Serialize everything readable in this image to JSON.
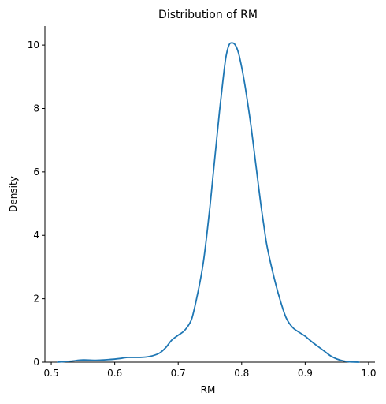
{
  "chart_data": {
    "type": "line",
    "title": "Distribution of RM",
    "xlabel": "RM",
    "ylabel": "Density",
    "xlim": [
      0.49,
      1.01
    ],
    "ylim": [
      0,
      10.6
    ],
    "xticks": [
      0.5,
      0.6,
      0.7,
      0.8,
      0.9,
      1.0
    ],
    "xtick_labels": [
      "0.5",
      "0.6",
      "0.7",
      "0.8",
      "0.9",
      "1.0"
    ],
    "yticks": [
      0,
      2,
      4,
      6,
      8,
      10
    ],
    "ytick_labels": [
      "0",
      "2",
      "4",
      "6",
      "8",
      "10"
    ],
    "grid": false,
    "series": [
      {
        "color": "#1f77b4",
        "x": [
          0.51,
          0.53,
          0.55,
          0.57,
          0.59,
          0.61,
          0.62,
          0.64,
          0.655,
          0.67,
          0.68,
          0.69,
          0.7,
          0.71,
          0.72,
          0.725,
          0.73,
          0.735,
          0.74,
          0.745,
          0.75,
          0.755,
          0.76,
          0.765,
          0.77,
          0.775,
          0.78,
          0.785,
          0.79,
          0.795,
          0.8,
          0.805,
          0.81,
          0.815,
          0.82,
          0.825,
          0.83,
          0.835,
          0.84,
          0.85,
          0.86,
          0.87,
          0.88,
          0.89,
          0.9,
          0.91,
          0.92,
          0.93,
          0.94,
          0.95,
          0.96,
          0.97,
          0.985
        ],
        "y": [
          0.0,
          0.03,
          0.07,
          0.06,
          0.08,
          0.12,
          0.15,
          0.15,
          0.18,
          0.28,
          0.45,
          0.7,
          0.85,
          1.0,
          1.3,
          1.65,
          2.1,
          2.6,
          3.2,
          4.0,
          4.9,
          5.9,
          6.9,
          7.9,
          8.8,
          9.6,
          10.0,
          10.07,
          10.0,
          9.75,
          9.3,
          8.75,
          8.1,
          7.4,
          6.6,
          5.8,
          5.0,
          4.3,
          3.65,
          2.75,
          2.0,
          1.4,
          1.1,
          0.95,
          0.82,
          0.65,
          0.5,
          0.35,
          0.2,
          0.1,
          0.04,
          0.01,
          0.0
        ]
      }
    ]
  }
}
